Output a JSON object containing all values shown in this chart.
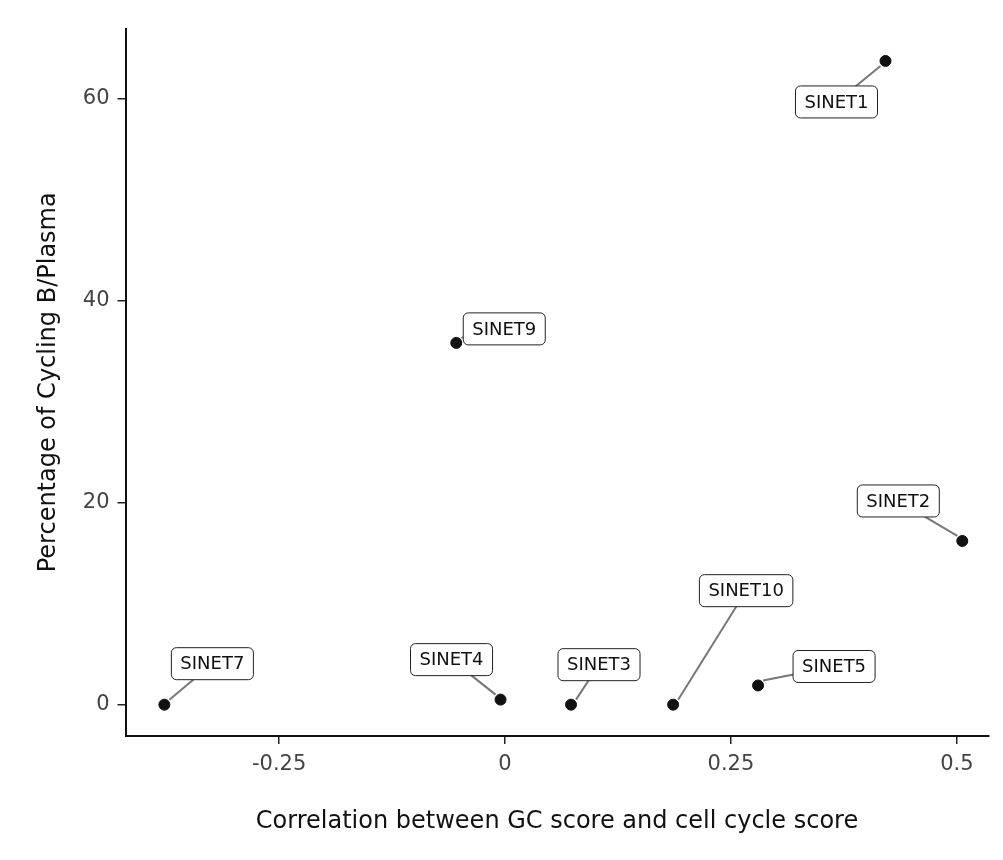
{
  "chart_data": {
    "type": "scatter",
    "xlabel": "Correlation between GC score and cell cycle score",
    "ylabel": "Percentage of Cycling B/Plasma",
    "x": [
      0.421,
      -0.054,
      0.506,
      0.186,
      0.28,
      0.073,
      -0.005,
      -0.377
    ],
    "series": [
      {
        "color": "#111111",
        "values": [
          63.7,
          35.8,
          16.2,
          0,
          1.9,
          0,
          0.5,
          0
        ]
      }
    ],
    "xlim": [
      -0.42,
      0.535
    ],
    "xticks": [
      {
        "value": -0.25,
        "label": "-0.25"
      },
      {
        "value": 0,
        "label": "0"
      },
      {
        "value": 0.25,
        "label": "0.25"
      },
      {
        "value": 0.5,
        "label": "0.5"
      }
    ],
    "ylim": [
      -3.1,
      66.9
    ],
    "yticks": [
      0,
      20,
      40,
      60
    ],
    "grid": false,
    "legend": false,
    "marker": "circle",
    "annotations": [
      {
        "text": "SINET1",
        "x": 0.421,
        "y": 63.7
      },
      {
        "text": "SINET9",
        "x": -0.054,
        "y": 35.8
      },
      {
        "text": "SINET2",
        "x": 0.506,
        "y": 16.2
      },
      {
        "text": "SINET10",
        "x": 0.186,
        "y": 0
      },
      {
        "text": "SINET5",
        "x": 0.28,
        "y": 1.9
      },
      {
        "text": "SINET3",
        "x": 0.073,
        "y": 0
      },
      {
        "text": "SINET4",
        "x": -0.005,
        "y": 0.5
      },
      {
        "text": "SINET7",
        "x": -0.377,
        "y": 0
      }
    ]
  }
}
